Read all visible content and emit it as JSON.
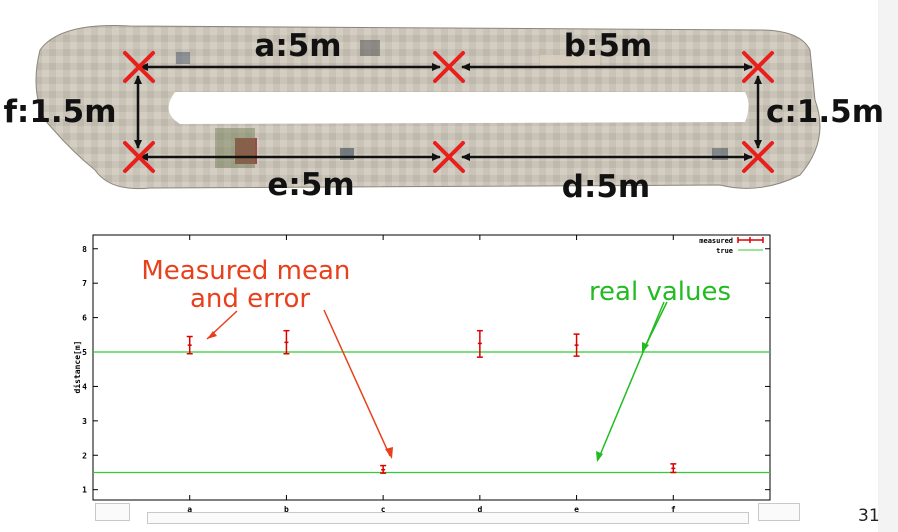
{
  "map": {
    "segments": [
      {
        "id": "a",
        "label": "a:5m"
      },
      {
        "id": "b",
        "label": "b:5m"
      },
      {
        "id": "c",
        "label": "c:1.5m"
      },
      {
        "id": "d",
        "label": "d:5m"
      },
      {
        "id": "e",
        "label": "e:5m"
      },
      {
        "id": "f",
        "label": "f:1.5m"
      }
    ]
  },
  "annotations": {
    "measured": "Measured mean\nand error",
    "real": "real values",
    "measured_color": "#e8401c",
    "real_color": "#22bb22"
  },
  "chart_data": {
    "type": "scatter",
    "categories": [
      "a",
      "b",
      "c",
      "d",
      "e",
      "f"
    ],
    "ylabel": "distance[m]",
    "ylim": [
      0.7,
      8.4
    ],
    "yticks": [
      "1",
      "2",
      "3",
      "4",
      "5",
      "6",
      "7",
      "8"
    ],
    "series": [
      {
        "name": "measured",
        "color": "#dd0000",
        "points": [
          {
            "x": "a",
            "mean": 5.2,
            "low": 4.95,
            "high": 5.45
          },
          {
            "x": "b",
            "mean": 5.28,
            "low": 4.95,
            "high": 5.62
          },
          {
            "x": "c",
            "mean": 1.58,
            "low": 1.48,
            "high": 1.7
          },
          {
            "x": "d",
            "mean": 5.25,
            "low": 4.85,
            "high": 5.62
          },
          {
            "x": "e",
            "mean": 5.2,
            "low": 4.88,
            "high": 5.52
          },
          {
            "x": "f",
            "mean": 1.62,
            "low": 1.5,
            "high": 1.75
          }
        ]
      },
      {
        "name": "true",
        "color": "#33cc33",
        "hlines": [
          5,
          1.5
        ]
      }
    ],
    "legend": "top-right"
  },
  "footer": {
    "page_number": "31"
  }
}
